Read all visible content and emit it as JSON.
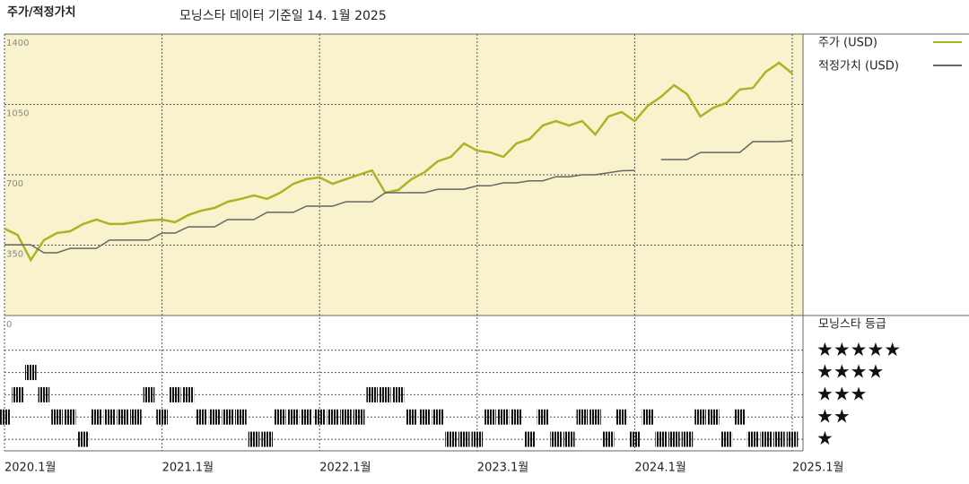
{
  "chart_data": [
    {
      "type": "line",
      "title": "주가/적정가치",
      "subtitle": "모닝스타 데이터 기준일 14. 1월 2025",
      "x": [
        "2020-01",
        "2020-02",
        "2020-03",
        "2020-04",
        "2020-05",
        "2020-06",
        "2020-07",
        "2020-08",
        "2020-09",
        "2020-10",
        "2020-11",
        "2020-12",
        "2021-01",
        "2021-02",
        "2021-03",
        "2021-04",
        "2021-05",
        "2021-06",
        "2021-07",
        "2021-08",
        "2021-09",
        "2021-10",
        "2021-11",
        "2021-12",
        "2022-01",
        "2022-02",
        "2022-03",
        "2022-04",
        "2022-05",
        "2022-06",
        "2022-07",
        "2022-08",
        "2022-09",
        "2022-10",
        "2022-11",
        "2022-12",
        "2023-01",
        "2023-02",
        "2023-03",
        "2023-04",
        "2023-05",
        "2023-06",
        "2023-07",
        "2023-08",
        "2023-09",
        "2023-10",
        "2023-11",
        "2023-12",
        "2024-01",
        "2024-02",
        "2024-03",
        "2024-04",
        "2024-05",
        "2024-06",
        "2024-07",
        "2024-08",
        "2024-09",
        "2024-10",
        "2024-11",
        "2024-12",
        "2025-01"
      ],
      "series": [
        {
          "name": "주가 (USD)",
          "color": "#a9b526",
          "values": [
            432,
            401,
            276,
            375,
            410,
            419,
            455,
            477,
            455,
            455,
            464,
            473,
            477,
            464,
            500,
            522,
            535,
            566,
            580,
            597,
            580,
            611,
            655,
            678,
            687,
            655,
            678,
            700,
            722,
            611,
            624,
            678,
            713,
            767,
            789,
            856,
            820,
            811,
            789,
            856,
            878,
            945,
            967,
            945,
            967,
            900,
            990,
            1012,
            967,
            1043,
            1088,
            1146,
            1101,
            990,
            1034,
            1057,
            1124,
            1132,
            1213,
            1257,
            1204
          ]
        },
        {
          "name": "적정가치 (USD)",
          "color": "#666666",
          "values": [
            352,
            352,
            352,
            312,
            312,
            334,
            334,
            334,
            375,
            375,
            375,
            375,
            410,
            410,
            441,
            441,
            441,
            477,
            477,
            477,
            513,
            513,
            513,
            544,
            544,
            544,
            566,
            566,
            566,
            611,
            611,
            611,
            611,
            628,
            628,
            628,
            645,
            645,
            660,
            660,
            670,
            670,
            690,
            690,
            700,
            700,
            710,
            720,
            722,
            null,
            776,
            776,
            776,
            811,
            811,
            811,
            811,
            865,
            865,
            865,
            870
          ]
        }
      ],
      "ylim": [
        0,
        1400
      ],
      "yticks": [
        0,
        350,
        700,
        1050,
        1400
      ],
      "xticks": [
        {
          "value": "2020-01",
          "label": "2020.1월"
        },
        {
          "value": "2021-01",
          "label": "2021.1월"
        },
        {
          "value": "2022-01",
          "label": "2022.1월"
        },
        {
          "value": "2023-01",
          "label": "2023.1월"
        },
        {
          "value": "2024-01",
          "label": "2024.1월"
        },
        {
          "value": "2025-01",
          "label": "2025.1월"
        }
      ],
      "grid": true
    },
    {
      "type": "rating",
      "title": "모닝스타 등급",
      "x": [
        "2020-01",
        "2020-02",
        "2020-03",
        "2020-04",
        "2020-05",
        "2020-06",
        "2020-07",
        "2020-08",
        "2020-09",
        "2020-10",
        "2020-11",
        "2020-12",
        "2021-01",
        "2021-02",
        "2021-03",
        "2021-04",
        "2021-05",
        "2021-06",
        "2021-07",
        "2021-08",
        "2021-09",
        "2021-10",
        "2021-11",
        "2021-12",
        "2022-01",
        "2022-02",
        "2022-03",
        "2022-04",
        "2022-05",
        "2022-06",
        "2022-07",
        "2022-08",
        "2022-09",
        "2022-10",
        "2022-11",
        "2022-12",
        "2023-01",
        "2023-02",
        "2023-03",
        "2023-04",
        "2023-05",
        "2023-06",
        "2023-07",
        "2023-08",
        "2023-09",
        "2023-10",
        "2023-11",
        "2023-12",
        "2024-01",
        "2024-02",
        "2024-03",
        "2024-04",
        "2024-05",
        "2024-06",
        "2024-07",
        "2024-08",
        "2024-09",
        "2024-10",
        "2024-11",
        "2024-12",
        "2025-01"
      ],
      "values": [
        2,
        3,
        4,
        3,
        2,
        2,
        1,
        2,
        2,
        2,
        2,
        3,
        2,
        3,
        3,
        2,
        2,
        2,
        2,
        1,
        1,
        2,
        2,
        2,
        2,
        2,
        2,
        2,
        3,
        3,
        3,
        2,
        2,
        2,
        1,
        1,
        1,
        2,
        2,
        2,
        1,
        2,
        1,
        1,
        2,
        2,
        1,
        2,
        1,
        2,
        1,
        1,
        1,
        2,
        2,
        1,
        2,
        1,
        1,
        1,
        1
      ],
      "color": "#111111",
      "ylim": [
        0.5,
        6.5
      ],
      "yticks": [
        {
          "value": 5,
          "label": "★★★★★"
        },
        {
          "value": 4,
          "label": "★★★★"
        },
        {
          "value": 3,
          "label": "★★★"
        },
        {
          "value": 2,
          "label": "★★"
        },
        {
          "value": 1,
          "label": "★"
        }
      ]
    }
  ]
}
